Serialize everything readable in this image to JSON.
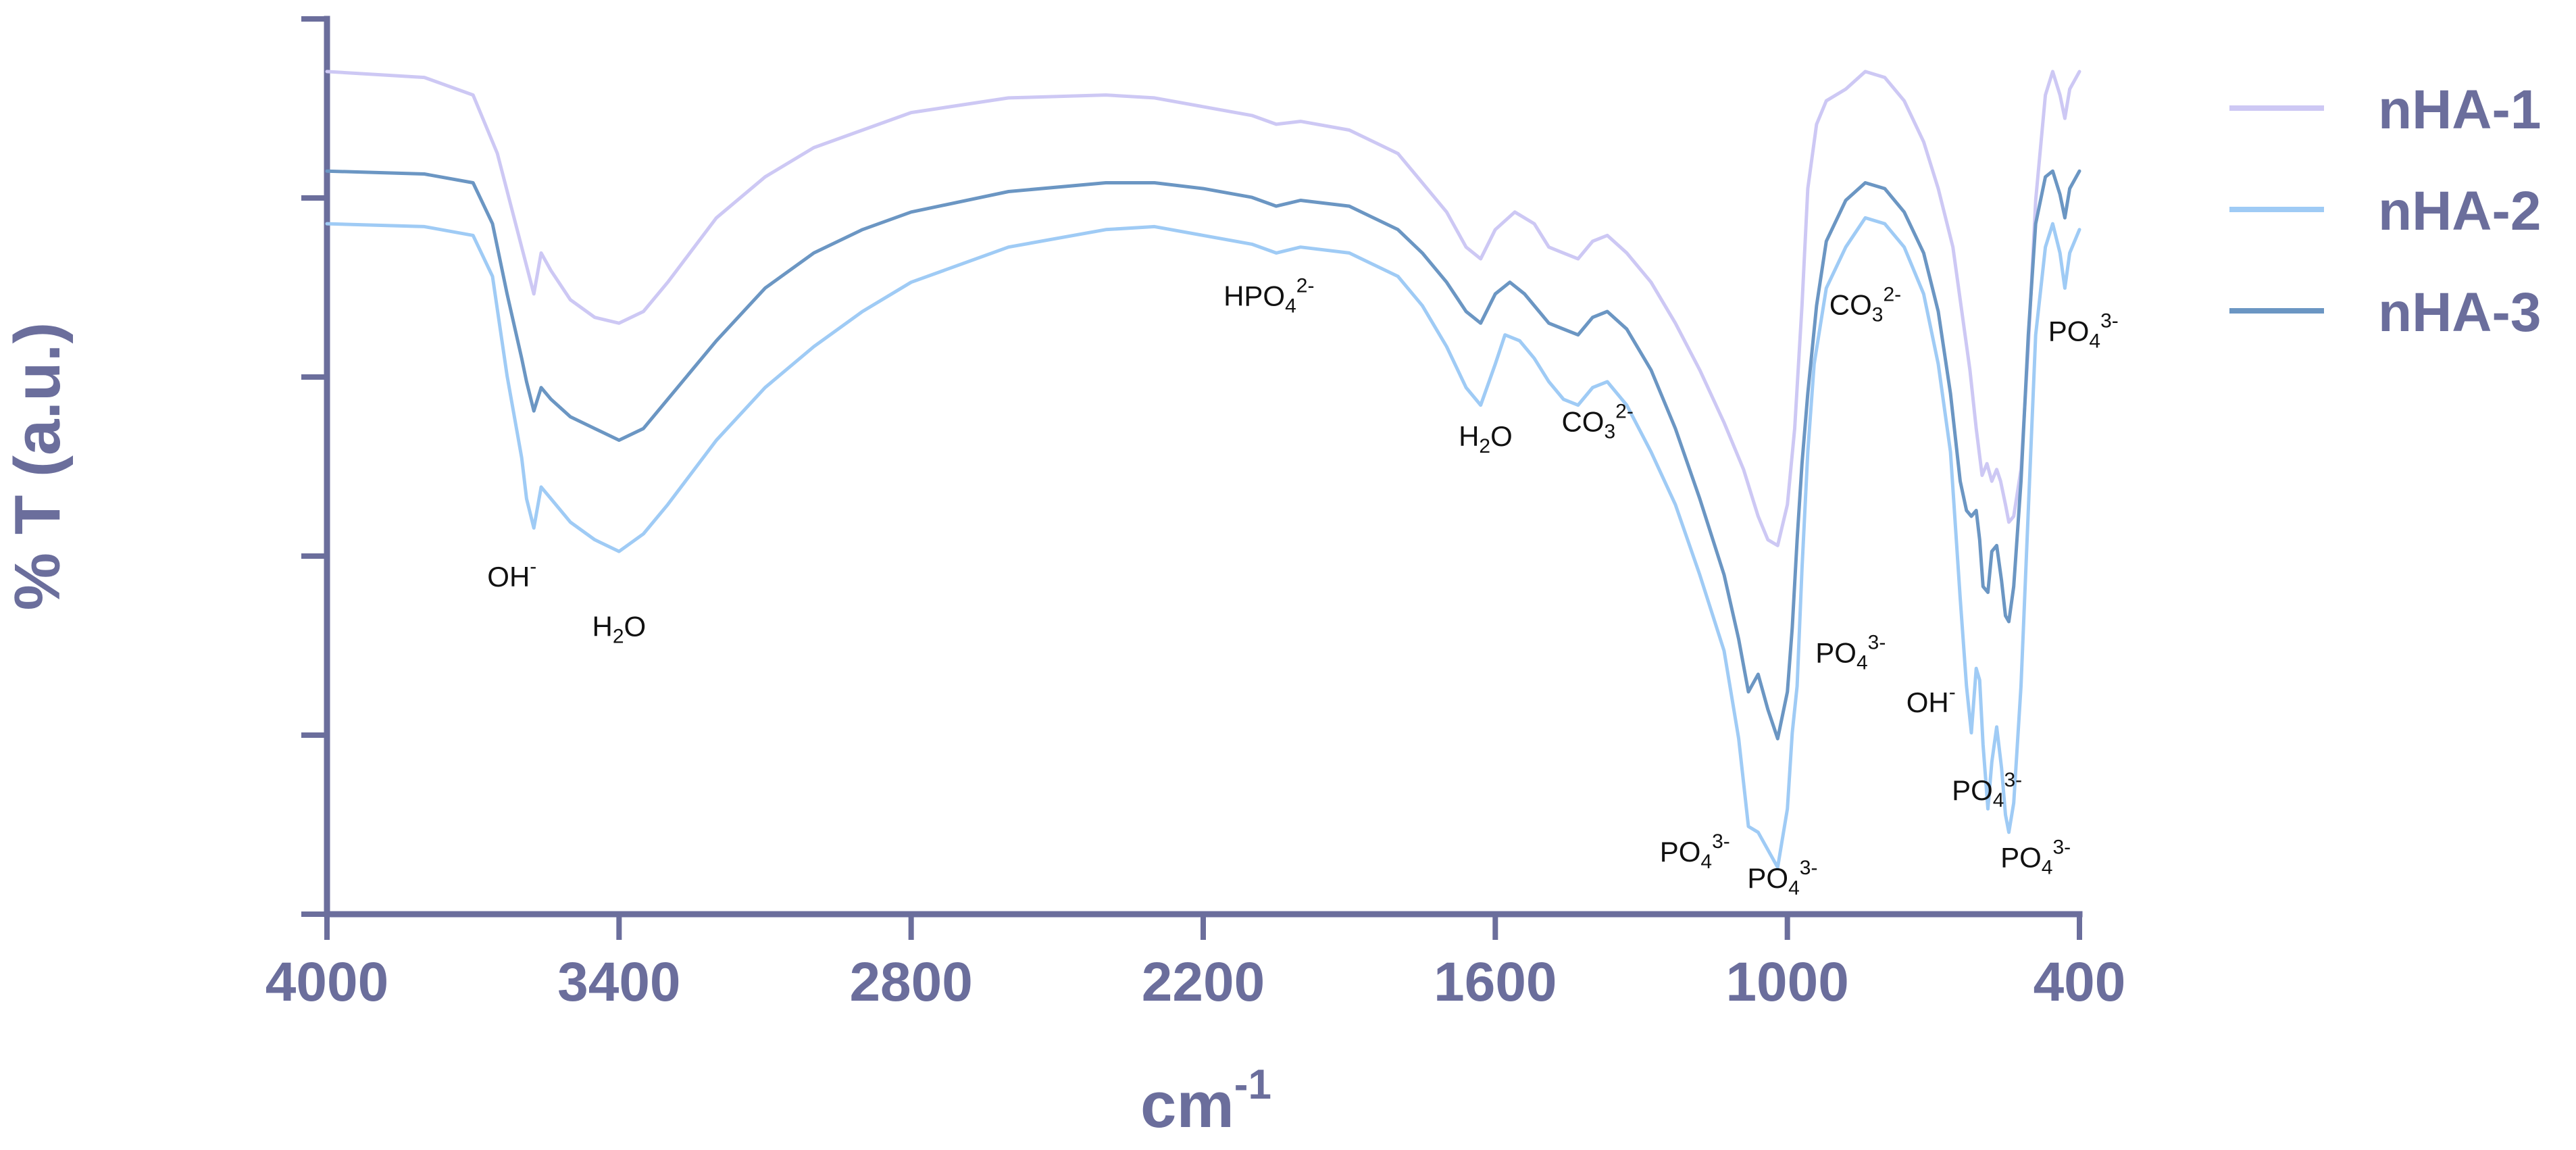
{
  "chart_data": {
    "type": "line",
    "xlabel": "cm",
    "xlabel_sup": "-1",
    "ylabel": "% T (a.u.)",
    "xlim": [
      4000,
      400
    ],
    "x_reversed": true,
    "y_ticklabels_shown": false,
    "xticks": [
      "4000",
      "3400",
      "2800",
      "2200",
      "1600",
      "1000",
      "400"
    ],
    "legend_position": "right",
    "series": [
      {
        "name": "nHA-1",
        "color": "#cdc8f4",
        "points": [
          [
            4000,
            10
          ],
          [
            3800,
            9.9
          ],
          [
            3700,
            9.6
          ],
          [
            3650,
            8.6
          ],
          [
            3600,
            7.0
          ],
          [
            3575,
            6.2
          ],
          [
            3560,
            6.9
          ],
          [
            3540,
            6.6
          ],
          [
            3500,
            6.1
          ],
          [
            3450,
            5.8
          ],
          [
            3400,
            5.7
          ],
          [
            3350,
            5.9
          ],
          [
            3300,
            6.4
          ],
          [
            3200,
            7.5
          ],
          [
            3100,
            8.2
          ],
          [
            3000,
            8.7
          ],
          [
            2800,
            9.3
          ],
          [
            2600,
            9.55
          ],
          [
            2400,
            9.6
          ],
          [
            2300,
            9.55
          ],
          [
            2200,
            9.4
          ],
          [
            2100,
            9.25
          ],
          [
            2050,
            9.1
          ],
          [
            2000,
            9.15
          ],
          [
            1900,
            9.0
          ],
          [
            1800,
            8.6
          ],
          [
            1750,
            8.1
          ],
          [
            1700,
            7.6
          ],
          [
            1660,
            7.0
          ],
          [
            1630,
            6.8
          ],
          [
            1600,
            7.3
          ],
          [
            1560,
            7.6
          ],
          [
            1520,
            7.4
          ],
          [
            1490,
            7.0
          ],
          [
            1460,
            6.9
          ],
          [
            1430,
            6.8
          ],
          [
            1400,
            7.1
          ],
          [
            1370,
            7.2
          ],
          [
            1330,
            6.9
          ],
          [
            1280,
            6.4
          ],
          [
            1230,
            5.7
          ],
          [
            1180,
            4.9
          ],
          [
            1130,
            4.0
          ],
          [
            1090,
            3.2
          ],
          [
            1060,
            2.4
          ],
          [
            1040,
            2.0
          ],
          [
            1020,
            1.9
          ],
          [
            1000,
            2.6
          ],
          [
            985,
            3.9
          ],
          [
            970,
            6.0
          ],
          [
            958,
            8.0
          ],
          [
            940,
            9.1
          ],
          [
            920,
            9.5
          ],
          [
            880,
            9.7
          ],
          [
            840,
            10.0
          ],
          [
            800,
            9.9
          ],
          [
            760,
            9.5
          ],
          [
            720,
            8.8
          ],
          [
            690,
            8.0
          ],
          [
            660,
            7.0
          ],
          [
            640,
            5.8
          ],
          [
            625,
            4.9
          ],
          [
            612,
            3.9
          ],
          [
            600,
            3.1
          ],
          [
            590,
            3.3
          ],
          [
            580,
            3.0
          ],
          [
            570,
            3.2
          ],
          [
            562,
            3.0
          ],
          [
            552,
            2.6
          ],
          [
            545,
            2.3
          ],
          [
            535,
            2.4
          ],
          [
            520,
            3.2
          ],
          [
            505,
            5.3
          ],
          [
            490,
            7.8
          ],
          [
            470,
            9.6
          ],
          [
            455,
            10.0
          ],
          [
            440,
            9.6
          ],
          [
            430,
            9.2
          ],
          [
            420,
            9.7
          ],
          [
            400,
            10.0
          ]
        ]
      },
      {
        "name": "nHA-2",
        "color": "#9fcbf5",
        "points": [
          [
            4000,
            7.4
          ],
          [
            3800,
            7.35
          ],
          [
            3700,
            7.2
          ],
          [
            3660,
            6.5
          ],
          [
            3630,
            4.8
          ],
          [
            3600,
            3.4
          ],
          [
            3590,
            2.7
          ],
          [
            3575,
            2.2
          ],
          [
            3560,
            2.9
          ],
          [
            3540,
            2.7
          ],
          [
            3500,
            2.3
          ],
          [
            3450,
            2.0
          ],
          [
            3400,
            1.8
          ],
          [
            3350,
            2.1
          ],
          [
            3300,
            2.6
          ],
          [
            3200,
            3.7
          ],
          [
            3100,
            4.6
          ],
          [
            3000,
            5.3
          ],
          [
            2900,
            5.9
          ],
          [
            2800,
            6.4
          ],
          [
            2600,
            7.0
          ],
          [
            2400,
            7.3
          ],
          [
            2300,
            7.35
          ],
          [
            2200,
            7.2
          ],
          [
            2100,
            7.05
          ],
          [
            2050,
            6.9
          ],
          [
            2000,
            7.0
          ],
          [
            1900,
            6.9
          ],
          [
            1800,
            6.5
          ],
          [
            1750,
            6.0
          ],
          [
            1700,
            5.3
          ],
          [
            1660,
            4.6
          ],
          [
            1630,
            4.3
          ],
          [
            1600,
            5.0
          ],
          [
            1580,
            5.5
          ],
          [
            1550,
            5.4
          ],
          [
            1520,
            5.1
          ],
          [
            1490,
            4.7
          ],
          [
            1460,
            4.4
          ],
          [
            1430,
            4.3
          ],
          [
            1400,
            4.6
          ],
          [
            1370,
            4.7
          ],
          [
            1330,
            4.3
          ],
          [
            1280,
            3.5
          ],
          [
            1230,
            2.6
          ],
          [
            1180,
            1.4
          ],
          [
            1130,
            0.1
          ],
          [
            1100,
            -1.4
          ],
          [
            1080,
            -2.9
          ],
          [
            1060,
            -3.0
          ],
          [
            1040,
            -3.3
          ],
          [
            1020,
            -3.6
          ],
          [
            1000,
            -2.6
          ],
          [
            990,
            -1.3
          ],
          [
            980,
            -0.5
          ],
          [
            970,
            1.5
          ],
          [
            958,
            3.5
          ],
          [
            945,
            5.0
          ],
          [
            920,
            6.3
          ],
          [
            880,
            7.0
          ],
          [
            840,
            7.5
          ],
          [
            800,
            7.4
          ],
          [
            760,
            7.0
          ],
          [
            720,
            6.2
          ],
          [
            690,
            5.0
          ],
          [
            665,
            3.5
          ],
          [
            645,
            1.0
          ],
          [
            632,
            -0.5
          ],
          [
            622,
            -1.3
          ],
          [
            612,
            -0.2
          ],
          [
            605,
            -0.4
          ],
          [
            598,
            -1.5
          ],
          [
            588,
            -2.6
          ],
          [
            580,
            -1.8
          ],
          [
            570,
            -1.2
          ],
          [
            560,
            -1.9
          ],
          [
            552,
            -2.7
          ],
          [
            545,
            -3.0
          ],
          [
            535,
            -2.5
          ],
          [
            520,
            -0.5
          ],
          [
            505,
            2.5
          ],
          [
            490,
            5.5
          ],
          [
            470,
            7.0
          ],
          [
            455,
            7.4
          ],
          [
            440,
            6.9
          ],
          [
            430,
            6.3
          ],
          [
            420,
            6.9
          ],
          [
            400,
            7.3
          ]
        ]
      },
      {
        "name": "nHA-3",
        "color": "#6b96c3",
        "points": [
          [
            4000,
            8.3
          ],
          [
            3800,
            8.25
          ],
          [
            3700,
            8.1
          ],
          [
            3660,
            7.4
          ],
          [
            3630,
            6.2
          ],
          [
            3600,
            5.1
          ],
          [
            3590,
            4.7
          ],
          [
            3575,
            4.2
          ],
          [
            3560,
            4.6
          ],
          [
            3540,
            4.4
          ],
          [
            3500,
            4.1
          ],
          [
            3450,
            3.9
          ],
          [
            3400,
            3.7
          ],
          [
            3350,
            3.9
          ],
          [
            3300,
            4.4
          ],
          [
            3200,
            5.4
          ],
          [
            3100,
            6.3
          ],
          [
            3000,
            6.9
          ],
          [
            2900,
            7.3
          ],
          [
            2800,
            7.6
          ],
          [
            2600,
            7.95
          ],
          [
            2400,
            8.1
          ],
          [
            2300,
            8.1
          ],
          [
            2200,
            8.0
          ],
          [
            2100,
            7.85
          ],
          [
            2050,
            7.7
          ],
          [
            2000,
            7.8
          ],
          [
            1900,
            7.7
          ],
          [
            1800,
            7.3
          ],
          [
            1750,
            6.9
          ],
          [
            1700,
            6.4
          ],
          [
            1660,
            5.9
          ],
          [
            1630,
            5.7
          ],
          [
            1600,
            6.2
          ],
          [
            1570,
            6.4
          ],
          [
            1540,
            6.2
          ],
          [
            1510,
            5.9
          ],
          [
            1490,
            5.7
          ],
          [
            1460,
            5.6
          ],
          [
            1430,
            5.5
          ],
          [
            1400,
            5.8
          ],
          [
            1370,
            5.9
          ],
          [
            1330,
            5.6
          ],
          [
            1280,
            4.9
          ],
          [
            1230,
            3.9
          ],
          [
            1180,
            2.7
          ],
          [
            1130,
            1.4
          ],
          [
            1100,
            0.3
          ],
          [
            1080,
            -0.6
          ],
          [
            1060,
            -0.3
          ],
          [
            1040,
            -0.9
          ],
          [
            1020,
            -1.4
          ],
          [
            1000,
            -0.6
          ],
          [
            990,
            0.5
          ],
          [
            980,
            2.0
          ],
          [
            970,
            3.3
          ],
          [
            958,
            4.5
          ],
          [
            940,
            6.0
          ],
          [
            920,
            7.1
          ],
          [
            880,
            7.8
          ],
          [
            840,
            8.1
          ],
          [
            800,
            8.0
          ],
          [
            760,
            7.6
          ],
          [
            720,
            6.9
          ],
          [
            690,
            5.9
          ],
          [
            665,
            4.5
          ],
          [
            645,
            3.0
          ],
          [
            632,
            2.5
          ],
          [
            622,
            2.4
          ],
          [
            612,
            2.5
          ],
          [
            605,
            2.0
          ],
          [
            598,
            1.2
          ],
          [
            588,
            1.1
          ],
          [
            580,
            1.8
          ],
          [
            570,
            1.9
          ],
          [
            560,
            1.3
          ],
          [
            552,
            0.7
          ],
          [
            545,
            0.6
          ],
          [
            535,
            1.2
          ],
          [
            520,
            3.0
          ],
          [
            505,
            5.5
          ],
          [
            490,
            7.4
          ],
          [
            470,
            8.2
          ],
          [
            455,
            8.3
          ],
          [
            440,
            7.9
          ],
          [
            430,
            7.5
          ],
          [
            420,
            8.0
          ],
          [
            400,
            8.3
          ]
        ]
      }
    ],
    "annotations": [
      {
        "base": "OH",
        "sub": "",
        "sup": "-",
        "x": 3620,
        "y": 1.2
      },
      {
        "base": "H",
        "sub": "2",
        "post": "O",
        "sup": "",
        "x": 3400,
        "y": 0.35
      },
      {
        "base": "HPO",
        "sub": "4",
        "sup": "2-",
        "x": 2065,
        "y": 6.0
      },
      {
        "base": "H",
        "sub": "2",
        "post": "O",
        "sup": "",
        "x": 1620,
        "y": 3.6
      },
      {
        "base": "CO",
        "sub": "3",
        "sup": "2-",
        "x": 1390,
        "y": 3.85
      },
      {
        "base": "CO",
        "sub": "3",
        "sup": "2-",
        "x": 840,
        "y": 5.85
      },
      {
        "base": "PO",
        "sub": "4",
        "sup": "3-",
        "x": 392,
        "y": 5.4
      },
      {
        "base": "PO",
        "sub": "4",
        "sup": "3-",
        "x": 870,
        "y": -0.1
      },
      {
        "base": "OH",
        "sub": "",
        "sup": "-",
        "x": 705,
        "y": -0.95
      },
      {
        "base": "PO",
        "sub": "4",
        "sup": "3-",
        "x": 590,
        "y": -2.45
      },
      {
        "base": "PO",
        "sub": "4",
        "sup": "3-",
        "x": 1190,
        "y": -3.5
      },
      {
        "base": "PO",
        "sub": "4",
        "sup": "3-",
        "x": 1010,
        "y": -3.95
      },
      {
        "base": "PO",
        "sub": "4",
        "sup": "3-",
        "x": 490,
        "y": -3.6
      }
    ]
  }
}
